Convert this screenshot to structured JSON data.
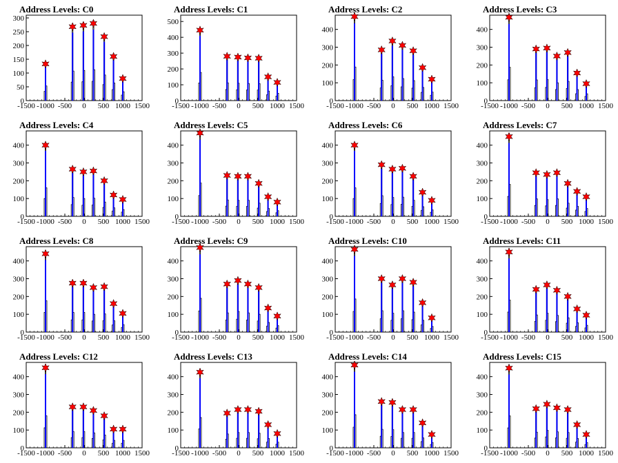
{
  "colors": {
    "histogram": "#000000",
    "filled": "#0000ff",
    "marker": "#ff0000",
    "axis": "#000000"
  },
  "x_ticks": [
    "-1500",
    "-1000",
    "-500",
    "0",
    "500",
    "1000",
    "1500"
  ],
  "chart_data": [
    {
      "type": "bar",
      "title": "Address Levels: C0",
      "xlim": [
        -1500,
        1500
      ],
      "ylim": [
        0,
        310
      ],
      "y_ticks": [
        "0",
        "50",
        "100",
        "150",
        "200",
        "250",
        "300"
      ],
      "peaks": [
        {
          "x": -1000,
          "y": 133
        },
        {
          "x": -300,
          "y": 268
        },
        {
          "x": -20,
          "y": 273
        },
        {
          "x": 240,
          "y": 280
        },
        {
          "x": 520,
          "y": 232
        },
        {
          "x": 760,
          "y": 160
        },
        {
          "x": 1000,
          "y": 80
        }
      ]
    },
    {
      "type": "bar",
      "title": "Address Levels: C1",
      "xlim": [
        -1500,
        1500
      ],
      "ylim": [
        0,
        540
      ],
      "y_ticks": [
        "0",
        "100",
        "200",
        "300",
        "400",
        "500"
      ],
      "peaks": [
        {
          "x": -1000,
          "y": 445
        },
        {
          "x": -300,
          "y": 280
        },
        {
          "x": -20,
          "y": 275
        },
        {
          "x": 240,
          "y": 270
        },
        {
          "x": 520,
          "y": 268
        },
        {
          "x": 760,
          "y": 150
        },
        {
          "x": 1000,
          "y": 115
        }
      ]
    },
    {
      "type": "bar",
      "title": "Address Levels: C2",
      "xlim": [
        -1500,
        1500
      ],
      "ylim": [
        0,
        480
      ],
      "y_ticks": [
        "0",
        "100",
        "200",
        "300",
        "400"
      ],
      "peaks": [
        {
          "x": -1000,
          "y": 472
        },
        {
          "x": -300,
          "y": 285
        },
        {
          "x": -20,
          "y": 335
        },
        {
          "x": 240,
          "y": 310
        },
        {
          "x": 520,
          "y": 280
        },
        {
          "x": 760,
          "y": 185
        },
        {
          "x": 1000,
          "y": 120
        }
      ]
    },
    {
      "type": "bar",
      "title": "Address Levels: C3",
      "xlim": [
        -1500,
        1500
      ],
      "ylim": [
        0,
        480
      ],
      "y_ticks": [
        "0",
        "100",
        "200",
        "300",
        "400"
      ],
      "peaks": [
        {
          "x": -1000,
          "y": 468
        },
        {
          "x": -300,
          "y": 290
        },
        {
          "x": -20,
          "y": 295
        },
        {
          "x": 240,
          "y": 250
        },
        {
          "x": 520,
          "y": 270
        },
        {
          "x": 760,
          "y": 155
        },
        {
          "x": 1000,
          "y": 95
        }
      ]
    },
    {
      "type": "bar",
      "title": "Address Levels: C4",
      "xlim": [
        -1500,
        1500
      ],
      "ylim": [
        0,
        480
      ],
      "y_ticks": [
        "0",
        "100",
        "200",
        "300",
        "400"
      ],
      "peaks": [
        {
          "x": -1000,
          "y": 400
        },
        {
          "x": -300,
          "y": 265
        },
        {
          "x": -20,
          "y": 250
        },
        {
          "x": 240,
          "y": 255
        },
        {
          "x": 520,
          "y": 200
        },
        {
          "x": 760,
          "y": 120
        },
        {
          "x": 1000,
          "y": 95
        }
      ]
    },
    {
      "type": "bar",
      "title": "Address Levels: C5",
      "xlim": [
        -1500,
        1500
      ],
      "ylim": [
        0,
        480
      ],
      "y_ticks": [
        "0",
        "100",
        "200",
        "300",
        "400"
      ],
      "peaks": [
        {
          "x": -1000,
          "y": 468
        },
        {
          "x": -300,
          "y": 230
        },
        {
          "x": -20,
          "y": 225
        },
        {
          "x": 240,
          "y": 225
        },
        {
          "x": 520,
          "y": 185
        },
        {
          "x": 760,
          "y": 110
        },
        {
          "x": 1000,
          "y": 80
        }
      ]
    },
    {
      "type": "bar",
      "title": "Address Levels: C6",
      "xlim": [
        -1500,
        1500
      ],
      "ylim": [
        0,
        480
      ],
      "y_ticks": [
        "0",
        "100",
        "200",
        "300",
        "400"
      ],
      "peaks": [
        {
          "x": -1000,
          "y": 400
        },
        {
          "x": -300,
          "y": 290
        },
        {
          "x": -20,
          "y": 265
        },
        {
          "x": 240,
          "y": 270
        },
        {
          "x": 520,
          "y": 225
        },
        {
          "x": 760,
          "y": 135
        },
        {
          "x": 1000,
          "y": 90
        }
      ]
    },
    {
      "type": "bar",
      "title": "Address Levels: C7",
      "xlim": [
        -1500,
        1500
      ],
      "ylim": [
        0,
        480
      ],
      "y_ticks": [
        "0",
        "100",
        "200",
        "300",
        "400"
      ],
      "peaks": [
        {
          "x": -1000,
          "y": 448
        },
        {
          "x": -300,
          "y": 245
        },
        {
          "x": -20,
          "y": 235
        },
        {
          "x": 240,
          "y": 245
        },
        {
          "x": 520,
          "y": 185
        },
        {
          "x": 760,
          "y": 140
        },
        {
          "x": 1000,
          "y": 110
        }
      ]
    },
    {
      "type": "bar",
      "title": "Address Levels: C8",
      "xlim": [
        -1500,
        1500
      ],
      "ylim": [
        0,
        480
      ],
      "y_ticks": [
        "0",
        "100",
        "200",
        "300",
        "400"
      ],
      "peaks": [
        {
          "x": -1000,
          "y": 440
        },
        {
          "x": -300,
          "y": 275
        },
        {
          "x": -20,
          "y": 275
        },
        {
          "x": 240,
          "y": 250
        },
        {
          "x": 520,
          "y": 255
        },
        {
          "x": 760,
          "y": 160
        },
        {
          "x": 1000,
          "y": 105
        }
      ]
    },
    {
      "type": "bar",
      "title": "Address Levels: C9",
      "xlim": [
        -1500,
        1500
      ],
      "ylim": [
        0,
        480
      ],
      "y_ticks": [
        "0",
        "100",
        "200",
        "300",
        "400"
      ],
      "peaks": [
        {
          "x": -1000,
          "y": 475
        },
        {
          "x": -300,
          "y": 270
        },
        {
          "x": -20,
          "y": 290
        },
        {
          "x": 240,
          "y": 270
        },
        {
          "x": 520,
          "y": 250
        },
        {
          "x": 760,
          "y": 135
        },
        {
          "x": 1000,
          "y": 90
        }
      ]
    },
    {
      "type": "bar",
      "title": "Address Levels: C10",
      "xlim": [
        -1500,
        1500
      ],
      "ylim": [
        0,
        480
      ],
      "y_ticks": [
        "0",
        "100",
        "200",
        "300",
        "400"
      ],
      "peaks": [
        {
          "x": -1000,
          "y": 465
        },
        {
          "x": -300,
          "y": 300
        },
        {
          "x": -20,
          "y": 265
        },
        {
          "x": 240,
          "y": 300
        },
        {
          "x": 520,
          "y": 280
        },
        {
          "x": 760,
          "y": 165
        },
        {
          "x": 1000,
          "y": 80
        }
      ]
    },
    {
      "type": "bar",
      "title": "Address Levels: C11",
      "xlim": [
        -1500,
        1500
      ],
      "ylim": [
        0,
        480
      ],
      "y_ticks": [
        "0",
        "100",
        "200",
        "300",
        "400"
      ],
      "peaks": [
        {
          "x": -1000,
          "y": 450
        },
        {
          "x": -300,
          "y": 240
        },
        {
          "x": -20,
          "y": 265
        },
        {
          "x": 240,
          "y": 235
        },
        {
          "x": 520,
          "y": 200
        },
        {
          "x": 760,
          "y": 130
        },
        {
          "x": 1000,
          "y": 95
        }
      ]
    },
    {
      "type": "bar",
      "title": "Address Levels: C12",
      "xlim": [
        -1500,
        1500
      ],
      "ylim": [
        0,
        480
      ],
      "y_ticks": [
        "0",
        "100",
        "200",
        "300",
        "400"
      ],
      "peaks": [
        {
          "x": -1000,
          "y": 450
        },
        {
          "x": -300,
          "y": 230
        },
        {
          "x": -20,
          "y": 230
        },
        {
          "x": 240,
          "y": 210
        },
        {
          "x": 520,
          "y": 180
        },
        {
          "x": 760,
          "y": 105
        },
        {
          "x": 1000,
          "y": 105
        }
      ]
    },
    {
      "type": "bar",
      "title": "Address Levels: C13",
      "xlim": [
        -1500,
        1500
      ],
      "ylim": [
        0,
        480
      ],
      "y_ticks": [
        "0",
        "100",
        "200",
        "300",
        "400"
      ],
      "peaks": [
        {
          "x": -1000,
          "y": 425
        },
        {
          "x": -300,
          "y": 195
        },
        {
          "x": -20,
          "y": 215
        },
        {
          "x": 240,
          "y": 215
        },
        {
          "x": 520,
          "y": 205
        },
        {
          "x": 760,
          "y": 130
        },
        {
          "x": 1000,
          "y": 80
        }
      ]
    },
    {
      "type": "bar",
      "title": "Address Levels: C14",
      "xlim": [
        -1500,
        1500
      ],
      "ylim": [
        0,
        480
      ],
      "y_ticks": [
        "0",
        "100",
        "200",
        "300",
        "400"
      ],
      "peaks": [
        {
          "x": -1000,
          "y": 465
        },
        {
          "x": -300,
          "y": 260
        },
        {
          "x": -20,
          "y": 255
        },
        {
          "x": 240,
          "y": 215
        },
        {
          "x": 520,
          "y": 215
        },
        {
          "x": 760,
          "y": 140
        },
        {
          "x": 1000,
          "y": 75
        }
      ]
    },
    {
      "type": "bar",
      "title": "Address Levels: C15",
      "xlim": [
        -1500,
        1500
      ],
      "ylim": [
        0,
        480
      ],
      "y_ticks": [
        "0",
        "100",
        "200",
        "300",
        "400"
      ],
      "peaks": [
        {
          "x": -1000,
          "y": 448
        },
        {
          "x": -300,
          "y": 220
        },
        {
          "x": -20,
          "y": 245
        },
        {
          "x": 240,
          "y": 225
        },
        {
          "x": 520,
          "y": 215
        },
        {
          "x": 760,
          "y": 130
        },
        {
          "x": 1000,
          "y": 75
        }
      ]
    }
  ]
}
